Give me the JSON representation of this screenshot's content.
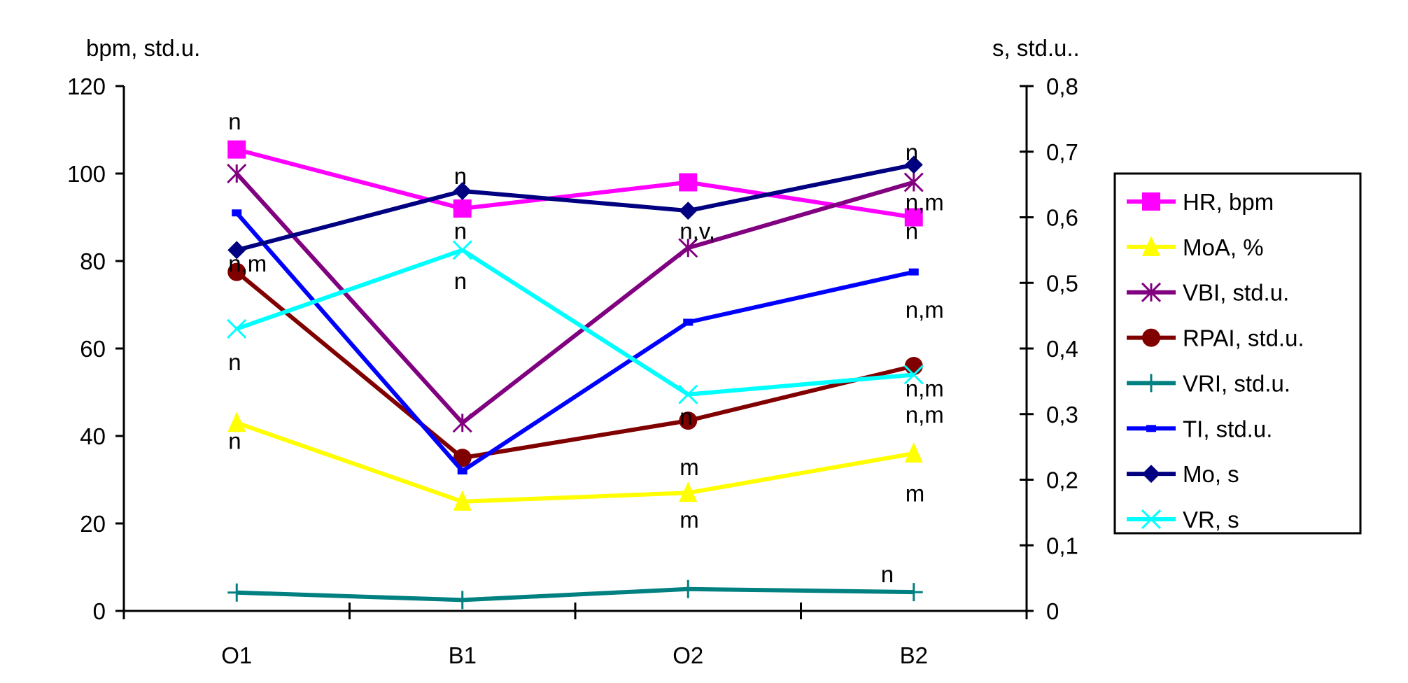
{
  "chart_data": {
    "type": "line",
    "categories": [
      "O1",
      "B1",
      "O2",
      "B2"
    ],
    "ylabel_left": "bpm, std.u.",
    "ylabel_right": "s, std.u..",
    "ylim_left": [
      0,
      120
    ],
    "ylim_right": [
      0,
      0.8
    ],
    "left_ticks": [
      "0",
      "20",
      "40",
      "60",
      "80",
      "100",
      "120"
    ],
    "right_ticks": [
      "0",
      "0,1",
      "0,2",
      "0,3",
      "0,4",
      "0,5",
      "0,6",
      "0,7",
      "0,8"
    ],
    "grid": false,
    "legend_position": "right",
    "series": [
      {
        "name": "HR, bpm",
        "axis": "left",
        "color": "#FF00FF",
        "marker": "square",
        "values": [
          105.5,
          92,
          98,
          90
        ]
      },
      {
        "name": "MoA, %",
        "axis": "left",
        "color": "#FFFF00",
        "marker": "triangle",
        "values": [
          43,
          25,
          27,
          36
        ]
      },
      {
        "name": "VBI, std.u.",
        "axis": "left",
        "color": "#800080",
        "marker": "asterisk",
        "values": [
          100,
          43,
          83,
          98
        ]
      },
      {
        "name": "RPAI, std.u.",
        "axis": "left",
        "color": "#800000",
        "marker": "circle",
        "values": [
          77.5,
          35,
          43.5,
          56
        ]
      },
      {
        "name": "VRI, std.u.",
        "axis": "left",
        "color": "#008080",
        "marker": "plus",
        "values": [
          4.2,
          2.5,
          5,
          4.3
        ]
      },
      {
        "name": "TI, std.u.",
        "axis": "left",
        "color": "#0000FF",
        "marker": "dash",
        "values": [
          91,
          32,
          66,
          77.5
        ]
      },
      {
        "name": "Mo, s",
        "axis": "right",
        "color": "#000080",
        "marker": "diamond",
        "values": [
          0.55,
          0.64,
          0.61,
          0.68
        ]
      },
      {
        "name": "VR, s",
        "axis": "right",
        "color": "#00FFFF",
        "marker": "x",
        "values": [
          0.43,
          0.55,
          0.33,
          0.36
        ]
      }
    ],
    "annotations": [
      {
        "category": "O1",
        "y": 112,
        "text": "n"
      },
      {
        "category": "O1",
        "y": 79.5,
        "text": "n,m"
      },
      {
        "category": "O1",
        "y": 57,
        "text": "n"
      },
      {
        "category": "O1",
        "y": 39,
        "text": "n"
      },
      {
        "category": "B1",
        "y": 99.5,
        "text": "n"
      },
      {
        "category": "B1",
        "y": 87,
        "text": "n"
      },
      {
        "category": "B1",
        "y": 75.5,
        "text": "n"
      },
      {
        "category": "O2",
        "y": 87,
        "text": "n,v,"
      },
      {
        "category": "O2",
        "y": 44.5,
        "text": "n"
      },
      {
        "category": "O2",
        "y": 33,
        "text": "m"
      },
      {
        "category": "O2",
        "y": 21,
        "text": "m"
      },
      {
        "category": "B2",
        "y": 105,
        "text": "n"
      },
      {
        "category": "B2",
        "y": 93.5,
        "text": "n,m"
      },
      {
        "category": "B2",
        "y": 87,
        "text": "n"
      },
      {
        "category": "B2",
        "y": 69,
        "text": "n,m"
      },
      {
        "category": "B2",
        "y": 51,
        "text": "n,m"
      },
      {
        "category": "B2",
        "y": 45,
        "text": "n,m"
      },
      {
        "category": "B2",
        "y": 27,
        "text": "m"
      },
      {
        "category": "B2",
        "y": 8.5,
        "text": "n"
      }
    ]
  }
}
